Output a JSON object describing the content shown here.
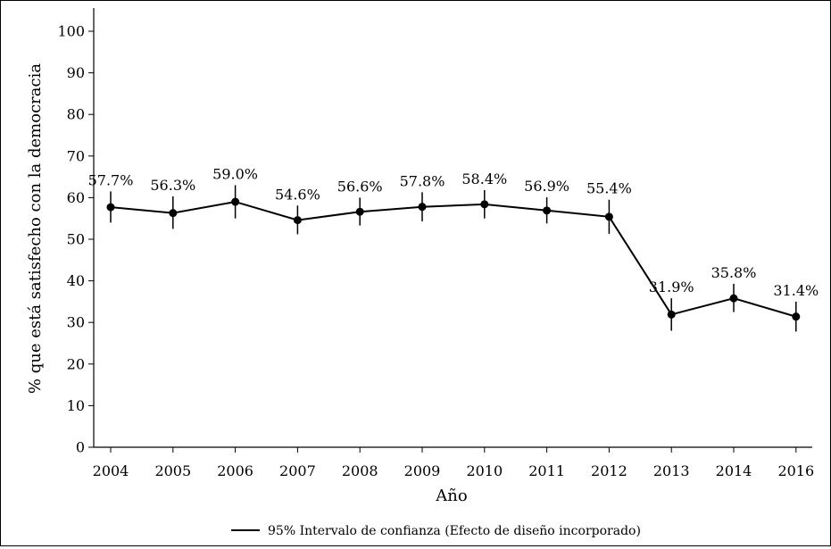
{
  "chart_data": {
    "type": "line",
    "title": "",
    "xlabel": "Año",
    "ylabel": "% que está satisfecho con la democracia",
    "categories": [
      "2004",
      "2005",
      "2006",
      "2007",
      "2008",
      "2009",
      "2010",
      "2011",
      "2012",
      "2013",
      "2014",
      "2016"
    ],
    "series": [
      {
        "values": [
          57.7,
          56.3,
          59.0,
          54.6,
          56.6,
          57.8,
          58.4,
          56.9,
          55.4,
          31.9,
          35.8,
          31.4
        ],
        "labels": [
          "57.7%",
          "56.3%",
          "59.0%",
          "54.6%",
          "56.6%",
          "57.8%",
          "58.4%",
          "56.9%",
          "55.4%",
          "31.9%",
          "35.8%",
          "31.4%"
        ],
        "ci_low": [
          54.0,
          52.5,
          55.0,
          51.2,
          53.3,
          54.3,
          55.0,
          53.8,
          51.3,
          28.0,
          32.5,
          27.8
        ],
        "ci_high": [
          61.5,
          60.3,
          63.0,
          58.1,
          60.0,
          61.3,
          61.8,
          60.1,
          59.5,
          35.8,
          39.3,
          35.0
        ]
      }
    ],
    "ylim": [
      0,
      100
    ],
    "yticks": [
      0,
      10,
      20,
      30,
      40,
      50,
      60,
      70,
      80,
      90,
      100
    ],
    "grid": false,
    "legend": {
      "position": "bottom",
      "entries": [
        "95% Intervalo de confianza (Efecto de diseño incorporado)"
      ]
    },
    "colors": {
      "line": "#000000",
      "marker": "#000000"
    }
  }
}
